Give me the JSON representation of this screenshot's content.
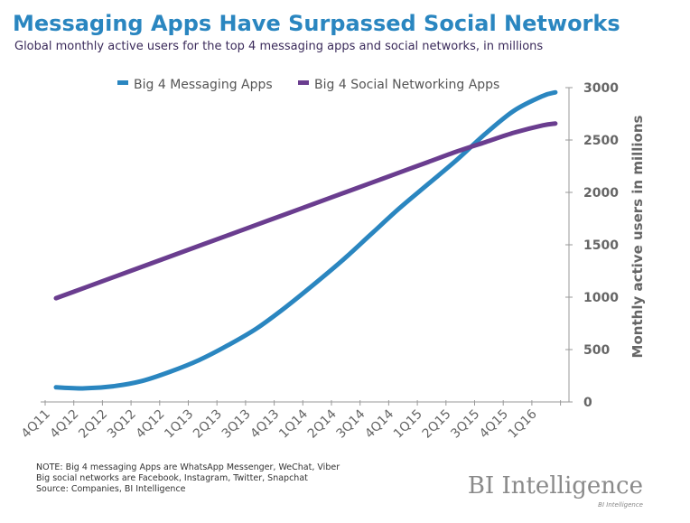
{
  "chart_data": {
    "type": "line",
    "title": "Messaging Apps Have Surpassed Social Networks",
    "subtitle": "Global monthly active users for the top 4 messaging apps and social networks, in millions",
    "categories": [
      "4Q11",
      "4Q12",
      "2Q12",
      "3Q12",
      "4Q12",
      "1Q13",
      "2Q13",
      "3Q13",
      "4Q13",
      "1Q14",
      "2Q14",
      "3Q14",
      "4Q14",
      "1Q15",
      "2Q15",
      "3Q15",
      "4Q15",
      "1Q16"
    ],
    "series": [
      {
        "name": "Big 4 Messaging Apps",
        "color": "#2a86c0",
        "values": [
          140,
          130,
          150,
          200,
          290,
          400,
          540,
          700,
          900,
          1120,
          1350,
          1600,
          1850,
          2080,
          2310,
          2560,
          2780,
          2920
        ]
      },
      {
        "name": "Big 4 Social Networking Apps",
        "color": "#6a3d8f",
        "values": [
          990,
          1090,
          1190,
          1290,
          1390,
          1490,
          1590,
          1690,
          1790,
          1890,
          1990,
          2090,
          2190,
          2290,
          2390,
          2480,
          2570,
          2640
        ]
      }
    ],
    "ylabel": "Monthly active users in millions",
    "xlabel": "",
    "ylim": [
      0,
      3000
    ],
    "yticks": [
      "0",
      "500",
      "1000",
      "1500",
      "2000",
      "2500",
      "3000"
    ],
    "y_axis_side": "right",
    "legend_placement": "top",
    "grid": false
  },
  "notes": [
    "NOTE: Big 4 messaging Apps are WhatsApp Messenger, WeChat, Viber",
    "Big social networks are Facebook, Instagram, Twitter, Snapchat",
    "Source: Companies, BI Intelligence"
  ],
  "logo": "BI Intelligence",
  "logo_small": "BI Intelligence"
}
